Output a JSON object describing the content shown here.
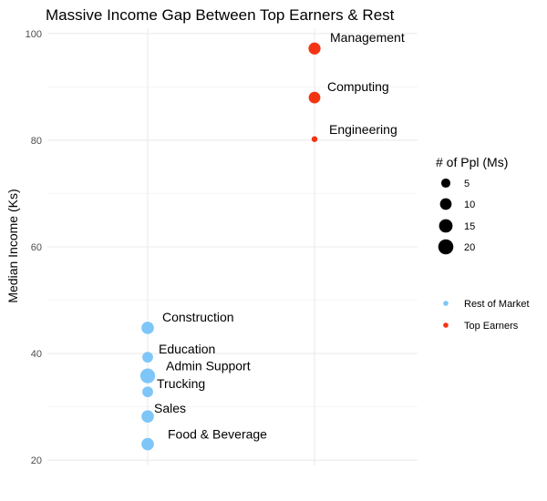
{
  "chart_data": {
    "type": "scatter",
    "title": "Massive Income Gap Between Top Earners & Rest",
    "xlabel": "",
    "ylabel": "Median Income (Ks)",
    "ylim": [
      19,
      101
    ],
    "yticks": [
      20,
      40,
      60,
      80,
      100
    ],
    "x_groups": [
      "Rest of Market",
      "Top Earners"
    ],
    "grid": true,
    "colors": {
      "Rest of Market": "#7fc6f8",
      "Top Earners": "#f33413"
    },
    "series": [
      {
        "name": "Rest of Market",
        "points": [
          {
            "label": "Construction",
            "y": 44.8,
            "size": 12
          },
          {
            "label": "Education",
            "y": 39.3,
            "size": 8
          },
          {
            "label": "Admin Support",
            "y": 35.8,
            "size": 19
          },
          {
            "label": "Trucking",
            "y": 32.8,
            "size": 8
          },
          {
            "label": "Sales",
            "y": 28.2,
            "size": 12
          },
          {
            "label": "Food & Beverage",
            "y": 23.0,
            "size": 12
          }
        ]
      },
      {
        "name": "Top Earners",
        "points": [
          {
            "label": "Management",
            "y": 97.2,
            "size": 11
          },
          {
            "label": "Computing",
            "y": 88.0,
            "size": 10
          },
          {
            "label": "Engineering",
            "y": 80.2,
            "size": 1
          }
        ]
      }
    ],
    "size_legend": {
      "title": "# of Ppl (Ms)",
      "values": [
        5,
        10,
        15,
        20
      ]
    },
    "color_legend": {
      "entries": [
        "Rest of Market",
        "Top Earners"
      ],
      "position": "right"
    }
  }
}
